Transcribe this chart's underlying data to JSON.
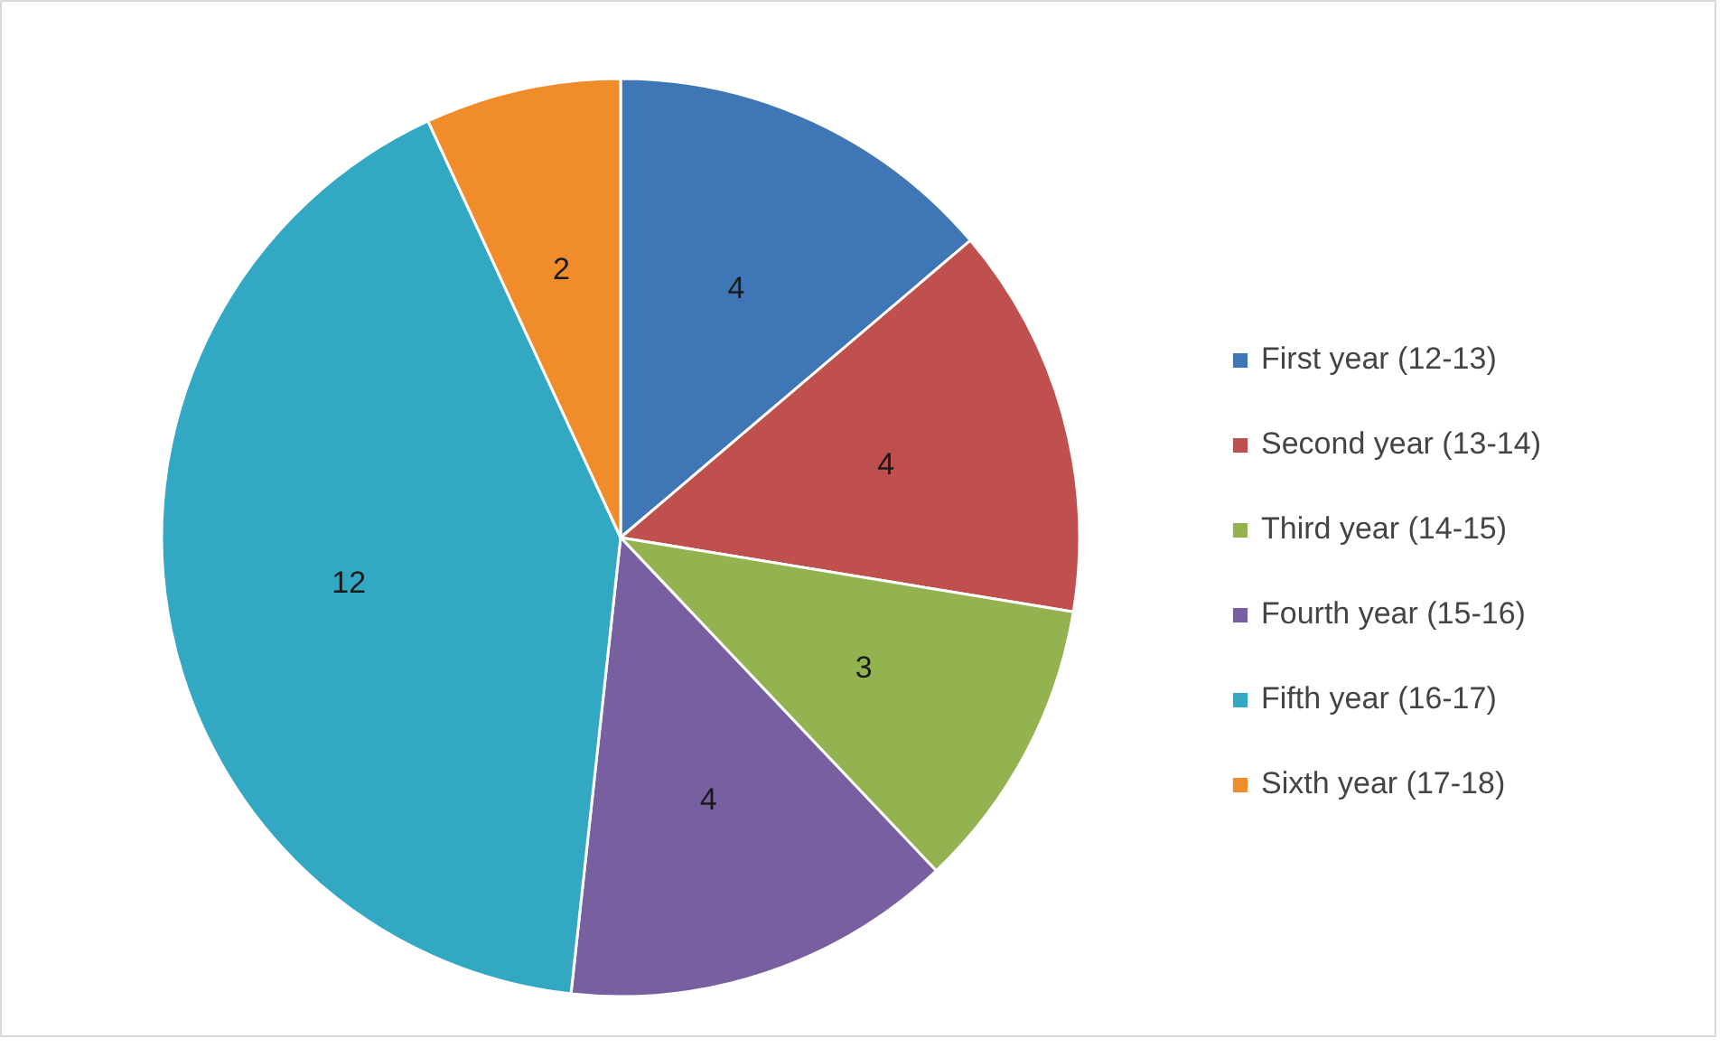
{
  "chart_data": {
    "type": "pie",
    "categories": [
      "First year (12-13)",
      "Second year (13-14)",
      "Third year (14-15)",
      "Fourth year (15-16)",
      "Fifth year (16-17)",
      "Sixth year (17-18)"
    ],
    "values": [
      4,
      4,
      3,
      4,
      12,
      2
    ],
    "colors": [
      "#3f77b6",
      "#c0504d",
      "#93b350",
      "#7860a0",
      "#32a8c3",
      "#f08c2a"
    ],
    "data_labels": true,
    "legend": "right"
  }
}
